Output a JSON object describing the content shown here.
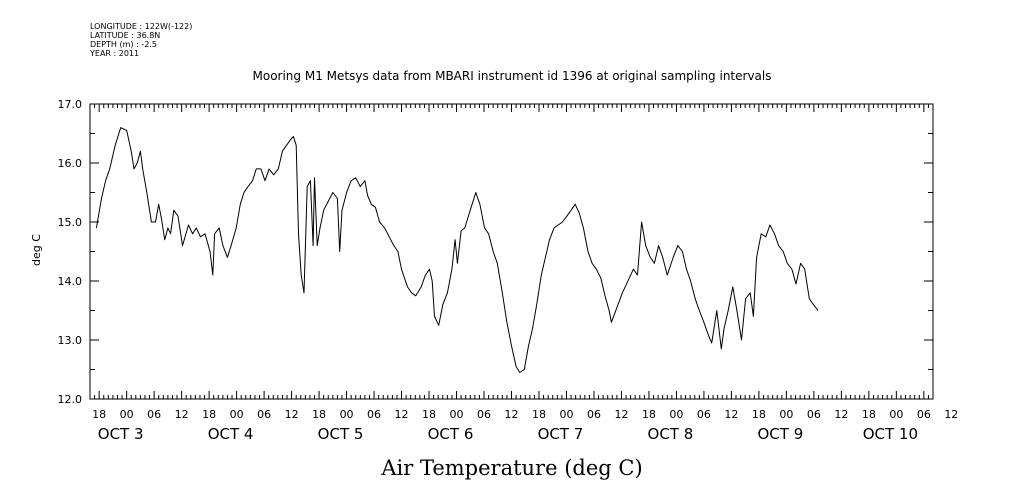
{
  "header": {
    "longitude": "LONGITUDE : 122W(-122)",
    "latitude": "LATITUDE : 36.8N",
    "depth": "DEPTH (m) : -2.5",
    "year": "YEAR : 2011"
  },
  "chart_data": {
    "type": "line",
    "title": "Mooring M1 Metsys data from MBARI instrument id 1396 at original sampling intervals",
    "xlabel": "Air Temperature (deg C)",
    "ylabel": "deg C",
    "ylim": [
      12.0,
      17.0
    ],
    "y_ticks": [
      "12.0",
      "13.0",
      "14.0",
      "15.0",
      "16.0",
      "17.0"
    ],
    "x_unit": "hours since 2011-10-03 00:00 (axis labelled in dates and hours)",
    "xlim": [
      -8,
      176
    ],
    "hour_ticks": [
      "18",
      "00",
      "06",
      "12",
      "18",
      "00",
      "06",
      "12",
      "18",
      "00",
      "06",
      "12",
      "18",
      "00",
      "06",
      "12",
      "18",
      "00",
      "06",
      "12",
      "18",
      "00",
      "06",
      "12",
      "18",
      "00",
      "06",
      "12",
      "18",
      "00",
      "06",
      "12"
    ],
    "day_labels": [
      "OCT  3",
      "OCT  4",
      "OCT  5",
      "OCT  6",
      "OCT  7",
      "OCT  8",
      "OCT  9",
      "OCT 10"
    ],
    "grid": false,
    "series": [
      {
        "color": "#000000",
        "points": [
          [
            -6.6,
            14.9
          ],
          [
            -5.5,
            15.4
          ],
          [
            -4.6,
            15.7
          ],
          [
            -3.7,
            15.9
          ],
          [
            -2.5,
            16.3
          ],
          [
            -1.3,
            16.6
          ],
          [
            0.0,
            16.55
          ],
          [
            1.0,
            16.2
          ],
          [
            1.6,
            15.9
          ],
          [
            2.3,
            16.0
          ],
          [
            3.0,
            16.2
          ],
          [
            3.5,
            15.9
          ],
          [
            4.4,
            15.5
          ],
          [
            5.4,
            15.0
          ],
          [
            6.3,
            15.0
          ],
          [
            7.0,
            15.3
          ],
          [
            7.6,
            15.05
          ],
          [
            8.3,
            14.7
          ],
          [
            9.0,
            14.9
          ],
          [
            9.6,
            14.8
          ],
          [
            10.3,
            15.2
          ],
          [
            11.2,
            15.1
          ],
          [
            12.2,
            14.6
          ],
          [
            13.5,
            14.95
          ],
          [
            14.4,
            14.8
          ],
          [
            15.2,
            14.9
          ],
          [
            16.1,
            14.75
          ],
          [
            17.1,
            14.8
          ],
          [
            18.2,
            14.5
          ],
          [
            18.8,
            14.1
          ],
          [
            19.2,
            14.8
          ],
          [
            20.2,
            14.9
          ],
          [
            21.0,
            14.6
          ],
          [
            22.0,
            14.4
          ],
          [
            22.8,
            14.6
          ],
          [
            23.9,
            14.9
          ],
          [
            24.8,
            15.3
          ],
          [
            25.6,
            15.5
          ],
          [
            26.5,
            15.6
          ],
          [
            27.5,
            15.7
          ],
          [
            28.3,
            15.9
          ],
          [
            29.3,
            15.9
          ],
          [
            30.2,
            15.7
          ],
          [
            31.1,
            15.9
          ],
          [
            32.1,
            15.8
          ],
          [
            33.1,
            15.9
          ],
          [
            34.0,
            16.2
          ],
          [
            34.9,
            16.3
          ],
          [
            35.8,
            16.4
          ],
          [
            36.4,
            16.45
          ],
          [
            37.0,
            16.3
          ],
          [
            37.5,
            14.8
          ],
          [
            38.1,
            14.1
          ],
          [
            38.7,
            13.8
          ],
          [
            39.4,
            15.6
          ],
          [
            40.1,
            15.7
          ],
          [
            40.7,
            14.6
          ],
          [
            41.0,
            15.75
          ],
          [
            41.6,
            14.6
          ],
          [
            42.2,
            14.9
          ],
          [
            43.0,
            15.2
          ],
          [
            44.0,
            15.35
          ],
          [
            45.0,
            15.5
          ],
          [
            46.0,
            15.4
          ],
          [
            46.5,
            14.5
          ],
          [
            47.0,
            15.2
          ],
          [
            48.0,
            15.5
          ],
          [
            49.0,
            15.7
          ],
          [
            50.0,
            15.75
          ],
          [
            51.0,
            15.6
          ],
          [
            52.0,
            15.7
          ],
          [
            52.6,
            15.45
          ],
          [
            53.4,
            15.3
          ],
          [
            54.3,
            15.25
          ],
          [
            55.2,
            15.0
          ],
          [
            56.3,
            14.9
          ],
          [
            57.3,
            14.75
          ],
          [
            58.3,
            14.6
          ],
          [
            59.2,
            14.5
          ],
          [
            60.0,
            14.2
          ],
          [
            61.3,
            13.9
          ],
          [
            62.2,
            13.8
          ],
          [
            63.1,
            13.75
          ],
          [
            64.3,
            13.9
          ],
          [
            65.2,
            14.1
          ],
          [
            66.1,
            14.2
          ],
          [
            66.7,
            14.0
          ],
          [
            67.2,
            13.4
          ],
          [
            68.1,
            13.25
          ],
          [
            69.0,
            13.6
          ],
          [
            70.0,
            13.8
          ],
          [
            71.0,
            14.2
          ],
          [
            71.7,
            14.7
          ],
          [
            72.2,
            14.3
          ],
          [
            73.0,
            14.85
          ],
          [
            73.8,
            14.9
          ],
          [
            74.6,
            15.1
          ],
          [
            75.4,
            15.3
          ],
          [
            76.2,
            15.5
          ],
          [
            77.1,
            15.3
          ],
          [
            78.1,
            14.9
          ],
          [
            79.0,
            14.8
          ],
          [
            80.0,
            14.5
          ],
          [
            80.9,
            14.3
          ],
          [
            82.0,
            13.8
          ],
          [
            83.0,
            13.3
          ],
          [
            84.0,
            12.9
          ],
          [
            85.0,
            12.55
          ],
          [
            85.8,
            12.45
          ],
          [
            86.8,
            12.5
          ],
          [
            87.7,
            12.9
          ],
          [
            88.6,
            13.2
          ],
          [
            89.5,
            13.6
          ],
          [
            90.5,
            14.1
          ],
          [
            91.4,
            14.4
          ],
          [
            92.3,
            14.7
          ],
          [
            93.3,
            14.9
          ],
          [
            94.2,
            14.95
          ],
          [
            95.1,
            15.0
          ],
          [
            96.1,
            15.1
          ],
          [
            97.0,
            15.2
          ],
          [
            97.9,
            15.3
          ],
          [
            98.8,
            15.15
          ],
          [
            99.7,
            14.9
          ],
          [
            100.7,
            14.5
          ],
          [
            101.6,
            14.3
          ],
          [
            102.5,
            14.2
          ],
          [
            103.5,
            14.05
          ],
          [
            104.4,
            13.75
          ],
          [
            105.3,
            13.5
          ],
          [
            105.8,
            13.3
          ],
          [
            108.2,
            13.8
          ],
          [
            110.6,
            14.2
          ],
          [
            111.5,
            14.1
          ],
          [
            111.9,
            14.5
          ],
          [
            112.4,
            15.0
          ],
          [
            113.3,
            14.6
          ],
          [
            114.3,
            14.4
          ],
          [
            115.2,
            14.3
          ],
          [
            116.1,
            14.6
          ],
          [
            117.0,
            14.4
          ],
          [
            118.0,
            14.1
          ],
          [
            119.3,
            14.4
          ],
          [
            120.3,
            14.6
          ],
          [
            121.3,
            14.5
          ],
          [
            122.2,
            14.2
          ],
          [
            123.1,
            14.0
          ],
          [
            124.1,
            13.7
          ],
          [
            125.0,
            13.5
          ],
          [
            126.0,
            13.3
          ],
          [
            126.9,
            13.1
          ],
          [
            127.7,
            12.95
          ],
          [
            128.8,
            13.5
          ],
          [
            129.8,
            12.85
          ],
          [
            130.4,
            13.2
          ],
          [
            131.3,
            13.5
          ],
          [
            132.3,
            13.9
          ],
          [
            133.2,
            13.5
          ],
          [
            134.2,
            13.0
          ],
          [
            135.1,
            13.7
          ],
          [
            136.1,
            13.8
          ],
          [
            136.8,
            13.4
          ],
          [
            137.5,
            14.4
          ],
          [
            138.5,
            14.8
          ],
          [
            139.5,
            14.75
          ],
          [
            140.4,
            14.95
          ],
          [
            141.4,
            14.8
          ],
          [
            142.3,
            14.6
          ],
          [
            143.3,
            14.5
          ],
          [
            144.2,
            14.3
          ],
          [
            145.2,
            14.2
          ],
          [
            146.1,
            13.95
          ],
          [
            147.1,
            14.3
          ],
          [
            148.0,
            14.2
          ],
          [
            149.0,
            13.7
          ],
          [
            149.9,
            13.6
          ],
          [
            150.9,
            13.5
          ]
        ]
      }
    ]
  }
}
